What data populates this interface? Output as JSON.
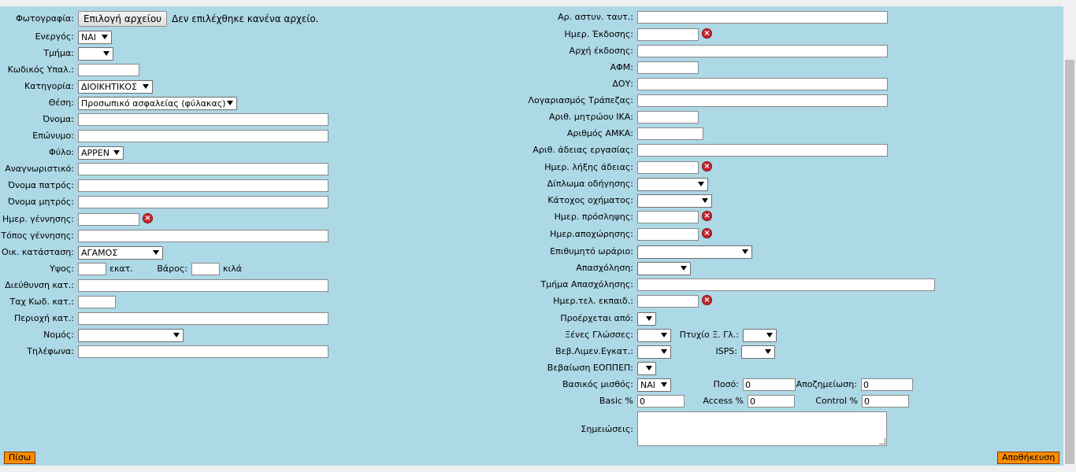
{
  "left": {
    "photo_label": "Φωτογραφία:",
    "file_button": "Επιλογή αρχείου",
    "file_status": "Δεν επιλέχθηκε κανένα αρχείο.",
    "active_label": "Ενεργός:",
    "active_value": "ΝΑΙ",
    "department_label": "Τμήμα:",
    "department_value": "",
    "emp_code_label": "Κωδικός Υπαλ.:",
    "emp_code_value": "",
    "category_label": "Κατηγορία:",
    "category_value": "ΔΙΟΙΚΗΤΙΚΟΣ",
    "position_label": "Θέση:",
    "position_value": "Προσωπικό ασφαλείας (φύλακας)",
    "first_name_label": "Όνομα:",
    "first_name_value": "",
    "last_name_label": "Επώνυμο:",
    "last_name_value": "",
    "gender_label": "Φύλο:",
    "gender_value": "ΑΡΡΕΝ",
    "identifier_label": "Αναγνωριστικό:",
    "identifier_value": "",
    "father_name_label": "Όνομα πατρός:",
    "father_name_value": "",
    "mother_name_label": "Όνομα μητρός:",
    "mother_name_value": "",
    "birth_date_label": "Ημερ. γέννησης:",
    "birth_date_value": "",
    "birth_place_label": "Τόπος γέννησης:",
    "birth_place_value": "",
    "marital_label": "Οικ. κατάσταση:",
    "marital_value": "ΑΓΑΜΟΣ",
    "height_label": "Υψος:",
    "height_value": "",
    "height_unit": "εκατ.",
    "weight_label": "Βάρος:",
    "weight_value": "",
    "weight_unit": "κιλά",
    "address_label": "Διεύθυνση κατ.:",
    "address_value": "",
    "postal_label": "Ταχ Κωδ. κατ.:",
    "postal_value": "",
    "area_label": "Περιοχή κατ.:",
    "area_value": "",
    "prefecture_label": "Νομός:",
    "prefecture_value": "",
    "phones_label": "Τηλέφωνα:",
    "phones_value": ""
  },
  "right": {
    "id_number_label": "Αρ. αστυν. ταυτ.:",
    "id_number_value": "",
    "issue_date_label": "Ημερ. Έκδοσης:",
    "issue_date_value": "",
    "issue_auth_label": "Αρχή έκδοσης:",
    "issue_auth_value": "",
    "afm_label": "ΑΦΜ:",
    "afm_value": "",
    "doy_label": "ΔΟΥ:",
    "doy_value": "",
    "bank_label": "Λογαριασμός Τράπεζας:",
    "bank_value": "",
    "ika_label": "Αριθ. μητρώου ΙΚΑ:",
    "ika_value": "",
    "amka_label": "Αριθμός ΑΜΚΑ:",
    "amka_value": "",
    "work_permit_label": "Αριθ. άδειας εργασίας:",
    "work_permit_value": "",
    "permit_expiry_label": "Ημερ. λήξης άδειας:",
    "permit_expiry_value": "",
    "license_label": "Δίπλωμα οδήγησης:",
    "license_value": "",
    "vehicle_label": "Κάτοχος οχήματος:",
    "vehicle_value": "",
    "hire_date_label": "Ημερ. πρόσληψης:",
    "hire_date_value": "",
    "leave_date_label": "Ημερ.αποχώρησης:",
    "leave_date_value": "",
    "schedule_label": "Επιθυμητό ωράριο:",
    "schedule_value": "",
    "employment_label": "Απασχόληση:",
    "employment_value": "",
    "emp_dept_label": "Τμήμα Απασχόλησης:",
    "emp_dept_value": "",
    "training_label": "Ημερ.τελ. εκπαιδ.:",
    "training_value": "",
    "origin_label": "Προέρχεται από:",
    "origin_value": "",
    "languages_label": "Ξένες Γλώσσες:",
    "languages_value": "",
    "lang_degree_label": "Πτυχίο Ξ. Γλ.:",
    "lang_degree_value": "",
    "port_cert_label": "Βεβ.Λιμεν.Εγκατ.:",
    "port_cert_value": "",
    "isps_label": "ISPS:",
    "isps_value": "",
    "eoppep_label": "Βεβαίωση ΕΟΠΠΕΠ:",
    "eoppep_value": "",
    "base_salary_label": "Βασικός μισθός:",
    "base_salary_value": "ΝΑΙ",
    "amount_label": "Ποσό:",
    "amount_value": "0",
    "compensation_label": "Αποζημείωση:",
    "compensation_value": "0",
    "basic_pct_label": "Basic %",
    "basic_pct_value": "0",
    "access_pct_label": "Access %",
    "access_pct_value": "0",
    "control_pct_label": "Control %",
    "control_pct_value": "0",
    "notes_label": "Σημειώσεις:",
    "notes_value": ""
  },
  "footer": {
    "back_button": "Πίσω",
    "save_button": "Αποθήκευση"
  },
  "icons": {
    "clear": "clear-date-icon"
  },
  "colors": {
    "panel_bg": "#add8e6",
    "button_bg": "#ff8c00",
    "clear_icon": "#c0272d"
  }
}
